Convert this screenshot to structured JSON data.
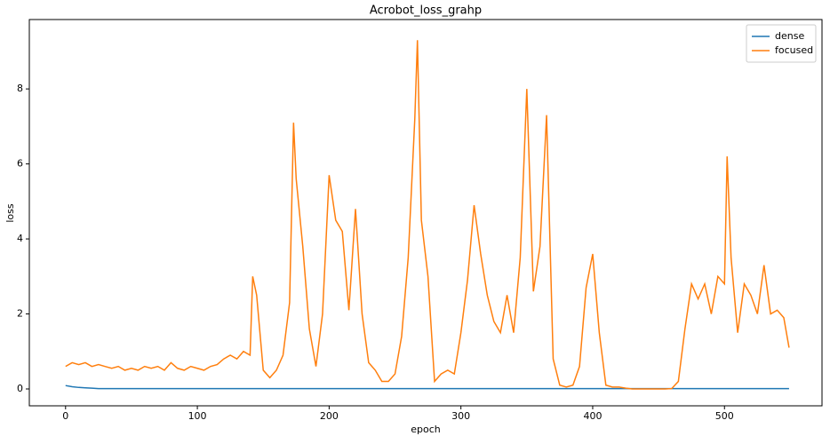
{
  "chart_data": {
    "type": "line",
    "title": "Acrobot_loss_grahp",
    "x_label": "epoch",
    "y_label": "loss",
    "x": [
      0,
      5,
      10,
      15,
      20,
      25,
      30,
      35,
      40,
      45,
      50,
      55,
      60,
      65,
      70,
      75,
      80,
      85,
      90,
      95,
      100,
      105,
      110,
      115,
      120,
      125,
      130,
      135,
      140,
      142,
      145,
      150,
      155,
      160,
      165,
      170,
      173,
      175,
      180,
      185,
      190,
      195,
      200,
      205,
      210,
      215,
      220,
      225,
      230,
      235,
      240,
      245,
      250,
      255,
      260,
      265,
      267,
      270,
      275,
      280,
      285,
      290,
      295,
      300,
      305,
      310,
      315,
      320,
      325,
      330,
      335,
      340,
      345,
      350,
      355,
      360,
      365,
      370,
      375,
      380,
      385,
      390,
      395,
      400,
      405,
      410,
      415,
      420,
      425,
      430,
      435,
      440,
      445,
      450,
      455,
      460,
      465,
      470,
      475,
      480,
      485,
      490,
      495,
      500,
      502,
      505,
      510,
      515,
      520,
      525,
      530,
      535,
      540,
      545,
      549
    ],
    "series": [
      {
        "name": "dense",
        "color": "#1f77b4",
        "values": [
          0.09,
          0.06,
          0.04,
          0.03,
          0.02,
          0.01,
          0.01,
          0.01,
          0.01,
          0.01,
          0.01,
          0.01,
          0.01,
          0.01,
          0.01,
          0.01,
          0.01,
          0.01,
          0.01,
          0.01,
          0.01,
          0.01,
          0.01,
          0.01,
          0.01,
          0.01,
          0.01,
          0.01,
          0.01,
          0.01,
          0.01,
          0.01,
          0.01,
          0.01,
          0.01,
          0.01,
          0.01,
          0.01,
          0.01,
          0.01,
          0.01,
          0.01,
          0.01,
          0.01,
          0.01,
          0.01,
          0.01,
          0.01,
          0.01,
          0.01,
          0.01,
          0.01,
          0.01,
          0.01,
          0.01,
          0.01,
          0.01,
          0.01,
          0.01,
          0.01,
          0.01,
          0.01,
          0.01,
          0.01,
          0.01,
          0.01,
          0.01,
          0.01,
          0.01,
          0.01,
          0.01,
          0.01,
          0.01,
          0.01,
          0.01,
          0.01,
          0.01,
          0.01,
          0.01,
          0.01,
          0.01,
          0.01,
          0.01,
          0.01,
          0.01,
          0.01,
          0.01,
          0.01,
          0.01,
          0.01,
          0.01,
          0.01,
          0.01,
          0.01,
          0.01,
          0.01,
          0.01,
          0.01,
          0.01,
          0.01,
          0.01,
          0.01,
          0.01,
          0.01,
          0.01,
          0.01,
          0.01,
          0.01,
          0.01,
          0.01,
          0.01,
          0.01,
          0.01,
          0.01,
          0.01
        ]
      },
      {
        "name": "focused",
        "color": "#ff7f0e",
        "values": [
          0.6,
          0.7,
          0.65,
          0.7,
          0.6,
          0.65,
          0.6,
          0.55,
          0.6,
          0.5,
          0.55,
          0.5,
          0.6,
          0.55,
          0.6,
          0.5,
          0.7,
          0.55,
          0.5,
          0.6,
          0.55,
          0.5,
          0.6,
          0.65,
          0.8,
          0.9,
          0.8,
          1.0,
          0.9,
          3.0,
          2.5,
          0.5,
          0.3,
          0.5,
          0.9,
          2.3,
          7.1,
          5.6,
          3.8,
          1.6,
          0.6,
          2.0,
          5.7,
          4.5,
          4.2,
          2.1,
          4.8,
          2.0,
          0.7,
          0.5,
          0.2,
          0.2,
          0.4,
          1.4,
          3.5,
          7.2,
          9.3,
          4.5,
          3.0,
          0.2,
          0.4,
          0.5,
          0.4,
          1.5,
          2.9,
          4.9,
          3.6,
          2.5,
          1.8,
          1.5,
          2.5,
          1.5,
          3.5,
          8.0,
          2.6,
          3.8,
          7.3,
          0.8,
          0.1,
          0.05,
          0.1,
          0.6,
          2.7,
          3.6,
          1.5,
          0.1,
          0.05,
          0.05,
          0.02,
          0,
          0,
          0,
          0,
          0,
          0,
          0.01,
          0.2,
          1.6,
          2.8,
          2.4,
          2.8,
          2.0,
          3.0,
          2.8,
          6.2,
          3.5,
          1.5,
          2.8,
          2.5,
          2.0,
          3.3,
          2.0,
          2.1,
          1.9,
          1.1
        ]
      }
    ],
    "xlim": [
      -27.5,
      574
    ],
    "ylim": [
      -0.45,
      9.85
    ],
    "xticks": [
      0,
      100,
      200,
      300,
      400,
      500
    ],
    "yticks": [
      0,
      2,
      4,
      6,
      8
    ],
    "legend": "upper right"
  }
}
